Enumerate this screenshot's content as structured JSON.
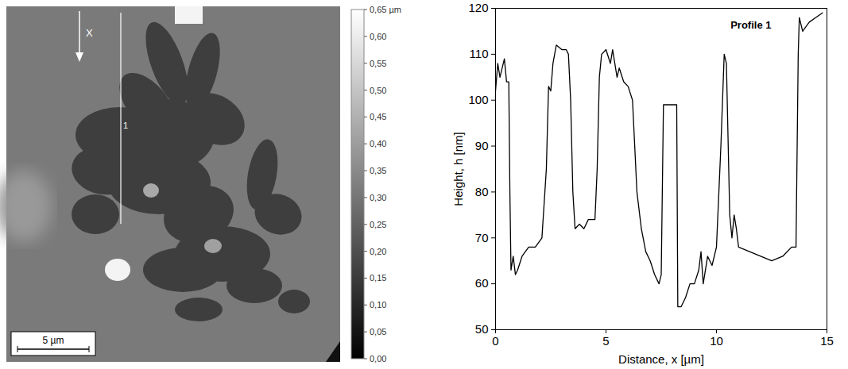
{
  "chart_data": [
    {
      "type": "image",
      "annotations": [
        "X",
        "1"
      ],
      "scale_bar": {
        "value": 5,
        "label": "5 µm"
      },
      "colorbar": {
        "range": [
          0,
          0.65
        ],
        "ticks": [
          {
            "value": 0,
            "label": "0,00"
          },
          {
            "value": 0.05,
            "label": "0,05"
          },
          {
            "value": 0.1,
            "label": "0,10"
          },
          {
            "value": 0.15,
            "label": "0,15"
          },
          {
            "value": 0.2,
            "label": "0,20"
          },
          {
            "value": 0.25,
            "label": "0,25"
          },
          {
            "value": 0.3,
            "label": "0,30"
          },
          {
            "value": 0.35,
            "label": "0,35"
          },
          {
            "value": 0.4,
            "label": "0,40"
          },
          {
            "value": 0.45,
            "label": "0,45"
          },
          {
            "value": 0.5,
            "label": "0,50"
          },
          {
            "value": 0.55,
            "label": "0,55"
          },
          {
            "value": 0.6,
            "label": "0,60"
          },
          {
            "value": 0.65,
            "label": "0,65 µm"
          }
        ]
      }
    },
    {
      "type": "line",
      "title": "Profile 1",
      "x_label": "Distance, x [µm]",
      "y_label": "Height, h [nm]",
      "color": "#000000",
      "xlim": [
        0,
        15
      ],
      "ylim": [
        50,
        120
      ],
      "xticks": [
        0,
        5,
        10,
        15
      ],
      "yticks": [
        50,
        60,
        70,
        80,
        90,
        100,
        110,
        120
      ],
      "x": [
        0,
        0.1,
        0.2,
        0.4,
        0.5,
        0.6,
        0.65,
        0.7,
        0.8,
        0.9,
        1.0,
        1.2,
        1.5,
        1.8,
        2.1,
        2.3,
        2.4,
        2.5,
        2.6,
        2.75,
        3.0,
        3.2,
        3.3,
        3.4,
        3.5,
        3.6,
        3.8,
        4.0,
        4.2,
        4.5,
        4.6,
        4.7,
        4.8,
        5.0,
        5.2,
        5.3,
        5.5,
        5.6,
        5.8,
        6.0,
        6.2,
        6.4,
        6.6,
        6.8,
        7.0,
        7.2,
        7.4,
        7.5,
        7.6,
        7.8,
        8.0,
        8.2,
        8.25,
        8.4,
        8.6,
        8.8,
        9.0,
        9.2,
        9.3,
        9.4,
        9.6,
        9.8,
        10.0,
        10.2,
        10.35,
        10.45,
        10.6,
        10.7,
        10.8,
        10.9,
        11.0,
        11.5,
        12.0,
        12.5,
        13.0,
        13.4,
        13.6,
        13.7,
        13.75,
        13.9,
        14.2,
        14.5,
        14.8
      ],
      "values": [
        102,
        108,
        105,
        109,
        104,
        104,
        80,
        63,
        66,
        62,
        63,
        66,
        68,
        68,
        70,
        85,
        103,
        102,
        108,
        112,
        111,
        111,
        110,
        100,
        80,
        72,
        73,
        72,
        74,
        74,
        85,
        105,
        110,
        111,
        108,
        111,
        105,
        107,
        104,
        103,
        100,
        80,
        72,
        67,
        65,
        62,
        60,
        62,
        99,
        99,
        99,
        99,
        55,
        55,
        57,
        60,
        60,
        63,
        67,
        60,
        66,
        64,
        68,
        90,
        110,
        108,
        75,
        70,
        75,
        72,
        68,
        67,
        66,
        65,
        66,
        68,
        68,
        110,
        118,
        115,
        117,
        118,
        119
      ]
    }
  ]
}
